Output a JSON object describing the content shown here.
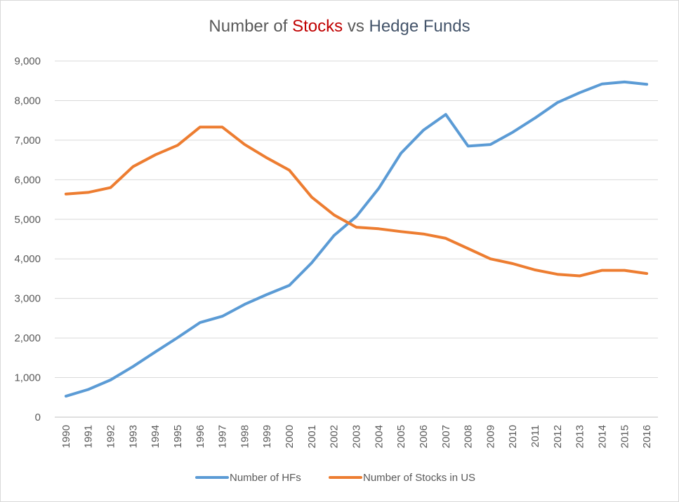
{
  "chart_data": {
    "type": "line",
    "title": {
      "part1": "Number of ",
      "part2": "Stocks",
      "part3": " vs ",
      "part4": "Hedge Funds"
    },
    "x": [
      "1990",
      "1991",
      "1992",
      "1993",
      "1994",
      "1995",
      "1996",
      "1997",
      "1998",
      "1999",
      "2000",
      "2001",
      "2002",
      "2003",
      "2004",
      "2005",
      "2006",
      "2007",
      "2008",
      "2009",
      "2010",
      "2011",
      "2012",
      "2013",
      "2014",
      "2015",
      "2016"
    ],
    "series": [
      {
        "name": "Number of HFs",
        "color": "#5b9bd5",
        "values": [
          530,
          700,
          940,
          1280,
          1650,
          2010,
          2390,
          2550,
          2850,
          3100,
          3330,
          3900,
          4590,
          5070,
          5780,
          6670,
          7250,
          7650,
          6850,
          6890,
          7200,
          7560,
          7950,
          8200,
          8420,
          8470,
          8410
        ]
      },
      {
        "name": "Number of Stocks in US",
        "color": "#ed7d31",
        "values": [
          5640,
          5680,
          5800,
          6330,
          6630,
          6870,
          7330,
          7330,
          6890,
          6550,
          6240,
          5560,
          5110,
          4800,
          4760,
          4690,
          4630,
          4520,
          4260,
          4000,
          3880,
          3720,
          3610,
          3570,
          3710,
          3710,
          3630
        ]
      }
    ],
    "ylim": [
      0,
      9000
    ],
    "yticks": [
      {
        "value": 0,
        "label": "0"
      },
      {
        "value": 1000,
        "label": "1,000"
      },
      {
        "value": 2000,
        "label": "2,000"
      },
      {
        "value": 3000,
        "label": "3,000"
      },
      {
        "value": 4000,
        "label": "4,000"
      },
      {
        "value": 5000,
        "label": "5,000"
      },
      {
        "value": 6000,
        "label": "6,000"
      },
      {
        "value": 7000,
        "label": "7,000"
      },
      {
        "value": 8000,
        "label": "8,000"
      },
      {
        "value": 9000,
        "label": "9,000"
      }
    ],
    "grid": true,
    "grid_color": "#d9d9d9",
    "legend_position": "bottom"
  }
}
